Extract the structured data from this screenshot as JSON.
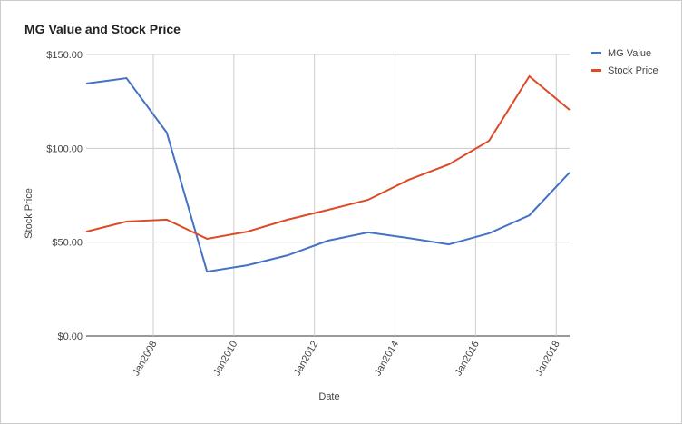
{
  "chart_data": {
    "type": "line",
    "title": "MG Value and Stock Price",
    "x_label": "Date",
    "y_label": "Stock Price",
    "x": [
      "2006-05",
      "2007-05",
      "2008-05",
      "2009-05",
      "2010-05",
      "2011-05",
      "2012-05",
      "2013-05",
      "2014-05",
      "2015-05",
      "2016-05",
      "2017-05",
      "2018-05"
    ],
    "series": [
      {
        "name": "MG Value",
        "color": "#4472c4",
        "values": [
          134.5,
          137.4,
          108.4,
          34.3,
          37.7,
          43,
          50.8,
          55.2,
          52.2,
          48.8,
          54.7,
          64.3,
          87.1
        ]
      },
      {
        "name": "Stock Price",
        "color": "#dc4a26",
        "values": [
          55.6,
          61,
          62,
          51.8,
          55.6,
          62,
          67.2,
          72.6,
          83.2,
          91.4,
          104,
          138.4,
          120.5
        ]
      }
    ],
    "xlim": [
      "2006-05",
      "2018-05"
    ],
    "xticks": [
      {
        "value": "2008-01",
        "label": "Jan2008"
      },
      {
        "value": "2010-01",
        "label": "Jan2010"
      },
      {
        "value": "2012-01",
        "label": "Jan2012"
      },
      {
        "value": "2014-01",
        "label": "Jan2014"
      },
      {
        "value": "2016-01",
        "label": "Jan2016"
      },
      {
        "value": "2018-01",
        "label": "Jan2018"
      }
    ],
    "ylim": [
      0,
      150
    ],
    "yticks": [
      {
        "value": 0,
        "label": "$0.00"
      },
      {
        "value": 50,
        "label": "$50.00"
      },
      {
        "value": 100,
        "label": "$100.00"
      },
      {
        "value": 150,
        "label": "$150.00"
      }
    ],
    "grid": true,
    "legend": "right"
  }
}
